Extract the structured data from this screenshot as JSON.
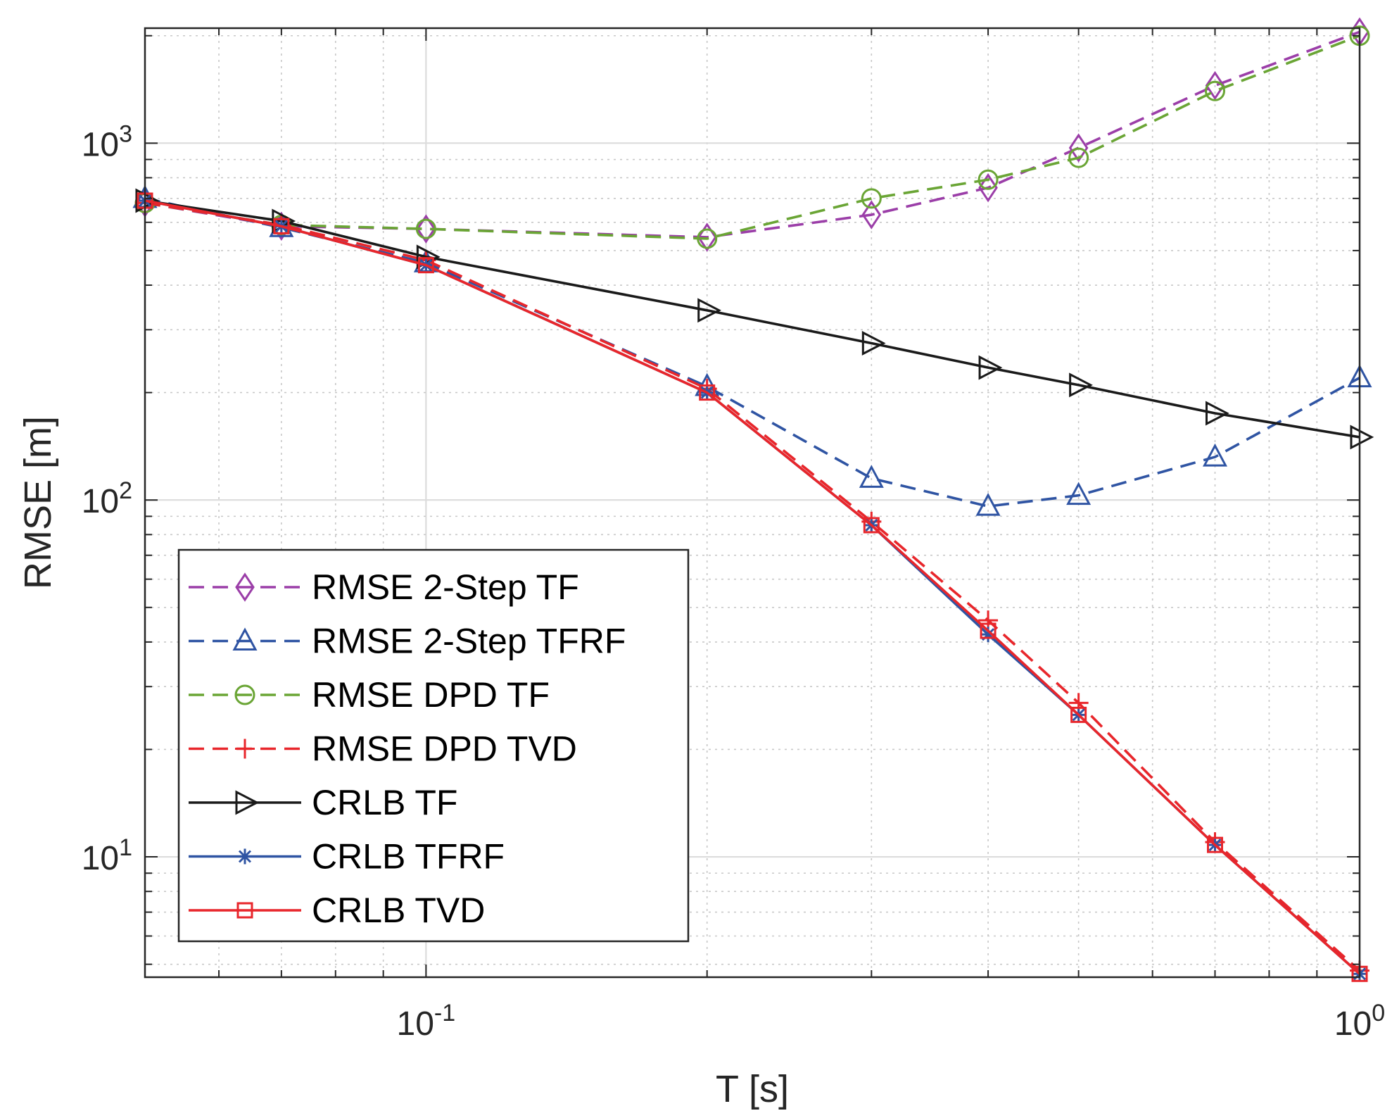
{
  "chart_data": {
    "type": "line",
    "xscale": "log",
    "yscale": "log",
    "xlabel": "T [s]",
    "ylabel": "RMSE [m]",
    "xlim": [
      0.05,
      1
    ],
    "ylim": [
      4.6,
      2100
    ],
    "grid": true,
    "legend_position": "bottom-left",
    "x_ticks": [
      {
        "value": 0.1,
        "base": "10",
        "exp": "-1"
      },
      {
        "value": 1,
        "base": "10",
        "exp": "0"
      }
    ],
    "y_ticks": [
      {
        "value": 10,
        "base": "10",
        "exp": "1"
      },
      {
        "value": 100,
        "base": "10",
        "exp": "2"
      },
      {
        "value": 1000,
        "base": "10",
        "exp": "3"
      }
    ],
    "x": [
      0.05,
      0.07,
      0.1,
      0.2,
      0.3,
      0.4,
      0.5,
      0.7,
      1.0
    ],
    "series": [
      {
        "name": "RMSE 2-Step TF",
        "color": "#9b3ea8",
        "dash": "dashed",
        "marker": "diamond",
        "values": [
          680,
          585,
          575,
          545,
          630,
          750,
          970,
          1450,
          2050
        ]
      },
      {
        "name": "RMSE 2-Step TFRF",
        "color": "#2f54a3",
        "dash": "dashed",
        "marker": "triangle-up",
        "values": [
          700,
          580,
          462,
          208,
          115,
          96,
          103,
          132,
          220
        ]
      },
      {
        "name": "RMSE DPD TF",
        "color": "#6aa535",
        "dash": "dashed",
        "marker": "circle",
        "values": [
          680,
          590,
          575,
          540,
          700,
          790,
          910,
          1400,
          2000
        ]
      },
      {
        "name": "RMSE DPD TVD",
        "color": "#e8262b",
        "dash": "dashed",
        "marker": "plus",
        "values": [
          680,
          590,
          470,
          205,
          87,
          46,
          27,
          11,
          4.8
        ]
      },
      {
        "name": "CRLB TF",
        "color": "#1a1a1a",
        "dash": "solid",
        "marker": "triangle-right",
        "values": [
          690,
          605,
          480,
          340,
          275,
          235,
          210,
          175,
          150
        ]
      },
      {
        "name": "CRLB TFRF",
        "color": "#2f54a3",
        "dash": "solid",
        "marker": "asterisk",
        "values": [
          690,
          585,
          455,
          200,
          85,
          42,
          25,
          10.8,
          4.7
        ]
      },
      {
        "name": "CRLB TVD",
        "color": "#e8262b",
        "dash": "solid",
        "marker": "square",
        "values": [
          690,
          585,
          455,
          200,
          85,
          43,
          25,
          10.8,
          4.7
        ]
      }
    ]
  }
}
